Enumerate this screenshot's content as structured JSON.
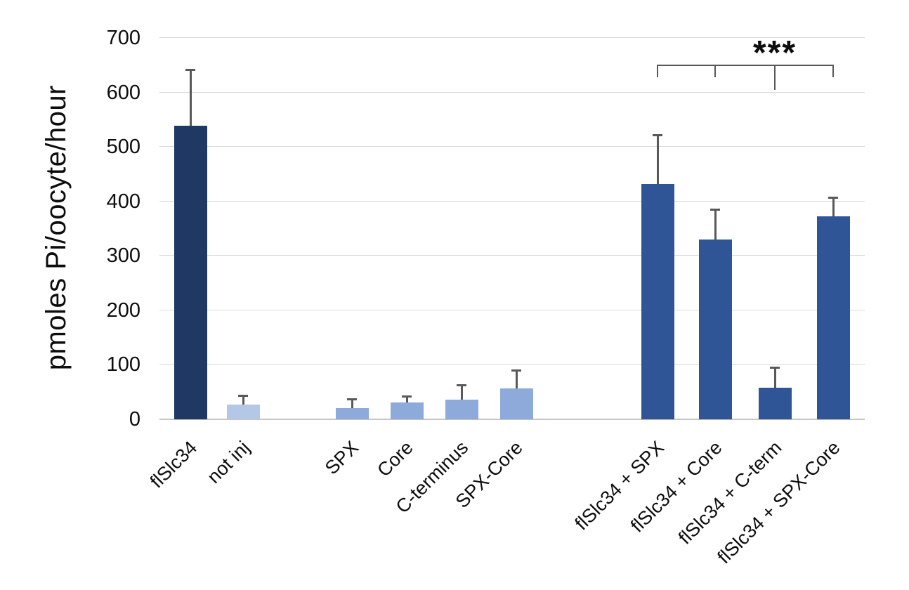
{
  "colors": {
    "dark_navy": "#1F3864",
    "light_blue": "#B4C7E7",
    "periwinkle_blue": "#8EAADB",
    "medium_blue": "#2F5597",
    "error_bar_gray": "#595959",
    "gridline_gray": "#D9D9D9",
    "axis_gray": "#C6C6C6",
    "text_black": "#0d0d0d"
  },
  "chart_data": {
    "type": "bar",
    "title": "",
    "xlabel": "",
    "ylabel": "pmoles Pi/oocyte/hour",
    "ylim": [
      0,
      700
    ],
    "yticks": [
      0,
      100,
      200,
      300,
      400,
      500,
      600,
      700
    ],
    "grid": true,
    "legend": false,
    "bars": [
      {
        "label": "flSlc34",
        "value": 539,
        "error_plus": 103,
        "color": "#1F3864",
        "group": "flSlc34-alone"
      },
      {
        "label": "not inj",
        "value": 27,
        "error_plus": 17,
        "color": "#B4C7E7",
        "group": "controls"
      },
      {
        "label": "SPX",
        "value": 21,
        "error_plus": 16,
        "color": "#8EAADB",
        "group": "controls"
      },
      {
        "label": "Core",
        "value": 31,
        "error_plus": 11,
        "color": "#8EAADB",
        "group": "controls"
      },
      {
        "label": "C-terminus",
        "value": 36,
        "error_plus": 27,
        "color": "#8EAADB",
        "group": "controls"
      },
      {
        "label": "SPX-Core",
        "value": 57,
        "error_plus": 33,
        "color": "#8EAADB",
        "group": "controls"
      },
      {
        "label": "flSlc34 + SPX",
        "value": 432,
        "error_plus": 90,
        "color": "#2F5597",
        "group": "coinjection"
      },
      {
        "label": "flSlc34 + Core",
        "value": 330,
        "error_plus": 55,
        "color": "#2F5597",
        "group": "coinjection"
      },
      {
        "label": "flSlc34 + C-term",
        "value": 58,
        "error_plus": 38,
        "color": "#2F5597",
        "group": "coinjection"
      },
      {
        "label": "flSlc34 + SPX-Core",
        "value": 372,
        "error_plus": 36,
        "color": "#2F5597",
        "group": "coinjection"
      }
    ],
    "annotation": {
      "significance_label": "***",
      "bracket_over_bars": [
        "flSlc34 + SPX",
        "flSlc34 + Core",
        "flSlc34 + C-term",
        "flSlc34 + SPX-Core"
      ],
      "emphasized_bar": "flSlc34 + C-term"
    }
  }
}
